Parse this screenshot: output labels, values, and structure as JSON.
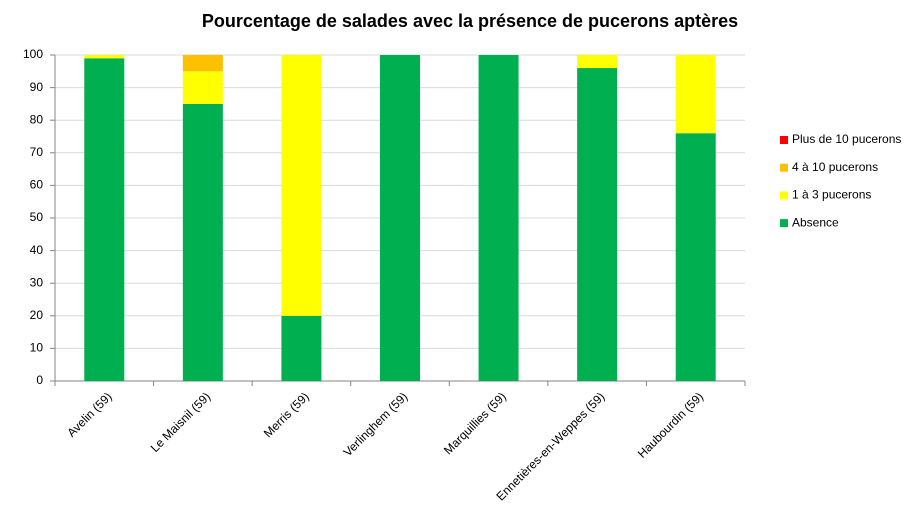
{
  "chart_data": {
    "type": "stacked_bar",
    "title": "Pourcentage de salades avec la présence de pucerons aptères",
    "categories": [
      "Avelin (59)",
      "Le Maisnil (59)",
      "Merris (59)",
      "Verlinghem (59)",
      "Marquillies (59)",
      "Ennetières-en-Weppes (59)",
      "Haubourdin (59)"
    ],
    "series": [
      {
        "name": "Absence",
        "color": "#00b050",
        "values": [
          99,
          85,
          20,
          100,
          100,
          96,
          76
        ]
      },
      {
        "name": "1 à 3 pucerons",
        "color": "#ffff00",
        "values": [
          1,
          10,
          80,
          0,
          0,
          4,
          24
        ]
      },
      {
        "name": "4 à 10 pucerons",
        "color": "#ffc000",
        "values": [
          0,
          5,
          0,
          0,
          0,
          0,
          0
        ]
      },
      {
        "name": "Plus de 10 pucerons",
        "color": "#ff0000",
        "values": [
          0,
          0,
          0,
          0,
          0,
          0,
          0
        ]
      }
    ],
    "ylim": [
      0,
      100
    ],
    "yticks": [
      0,
      10,
      20,
      30,
      40,
      50,
      60,
      70,
      80,
      90,
      100
    ],
    "grid": true,
    "legend": "right"
  }
}
